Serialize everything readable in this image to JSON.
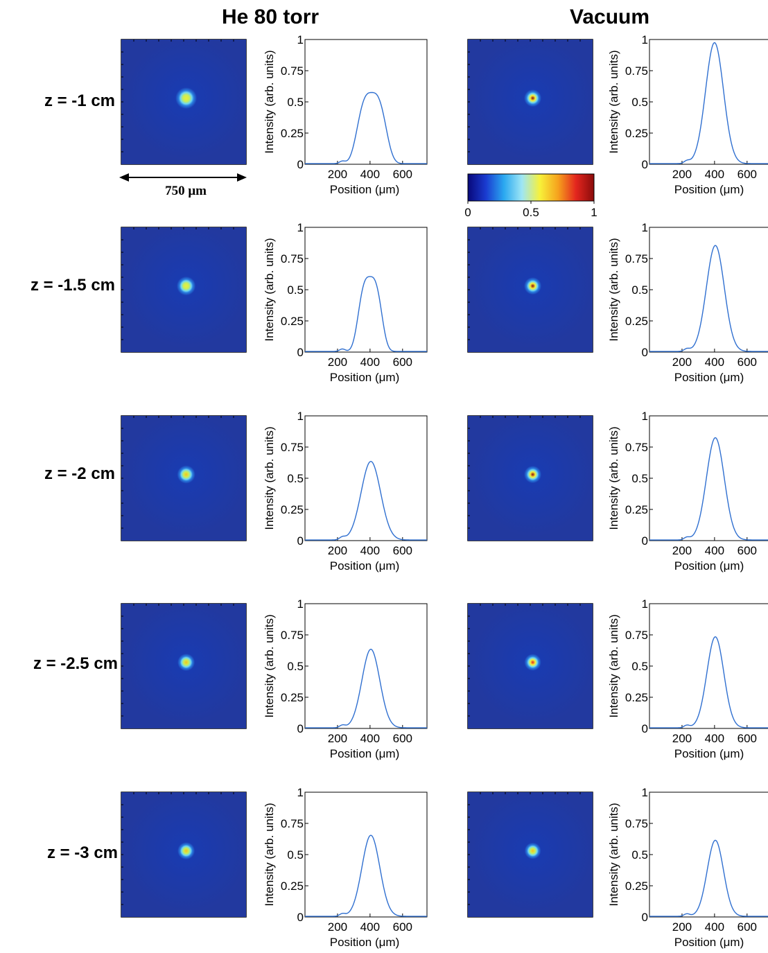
{
  "columns": [
    "He 80 torr",
    "Vacuum"
  ],
  "rows": [
    {
      "label": "z = -1 cm"
    },
    {
      "label": "z = -1.5 cm"
    },
    {
      "label": "z = -2 cm"
    },
    {
      "label": "z = -2.5 cm"
    },
    {
      "label": "z = -3 cm"
    }
  ],
  "scale_bar": {
    "label": "750  μm"
  },
  "colorbar": {
    "ticks": [
      "0",
      "0.5",
      "1"
    ],
    "colors": [
      "#08087a",
      "#1a3bd0",
      "#2aa8f0",
      "#9ee6f5",
      "#f7f13a",
      "#f6a21d",
      "#e3261e",
      "#8a0b0b"
    ]
  },
  "chart_data": [
    {
      "type": "line",
      "title": "He 80 torr",
      "row": "z = -1 cm",
      "xlabel": "Position (μm)",
      "ylabel": "Intensity (arb. units)",
      "xlim": [
        0,
        750
      ],
      "ylim": [
        0,
        1
      ],
      "xticks": [
        "200",
        "400",
        "600"
      ],
      "yticks": [
        "0",
        "0.25",
        "0.5",
        "0.75",
        "1"
      ],
      "peak": 0.57,
      "center": 410,
      "width": 80,
      "flat": true
    },
    {
      "type": "line",
      "title": "Vacuum",
      "row": "z = -1 cm",
      "xlabel": "Position (μm)",
      "ylabel": "Intensity (arb. units)",
      "xlim": [
        0,
        750
      ],
      "ylim": [
        0,
        1
      ],
      "xticks": [
        "200",
        "400",
        "600"
      ],
      "yticks": [
        "0",
        "0.25",
        "0.5",
        "0.75",
        "1"
      ],
      "peak": 0.97,
      "center": 400,
      "width": 55,
      "flat": false
    },
    {
      "type": "line",
      "title": "He 80 torr",
      "row": "z = -1.5 cm",
      "xlabel": "Position (μm)",
      "ylabel": "Intensity (arb. units)",
      "xlim": [
        0,
        750
      ],
      "ylim": [
        0,
        1
      ],
      "xticks": [
        "200",
        "400",
        "600"
      ],
      "yticks": [
        "0",
        "0.25",
        "0.5",
        "0.75",
        "1"
      ],
      "peak": 0.6,
      "center": 400,
      "width": 65,
      "flat": true
    },
    {
      "type": "line",
      "title": "Vacuum",
      "row": "z = -1.5 cm",
      "xlabel": "Position (μm)",
      "ylabel": "Intensity (arb. units)",
      "xlim": [
        0,
        750
      ],
      "ylim": [
        0,
        1
      ],
      "xticks": [
        "200",
        "400",
        "600"
      ],
      "yticks": [
        "0",
        "0.25",
        "0.5",
        "0.75",
        "1"
      ],
      "peak": 0.85,
      "center": 405,
      "width": 55,
      "flat": false
    },
    {
      "type": "line",
      "title": "He 80 torr",
      "row": "z = -2 cm",
      "xlabel": "Position (μm)",
      "ylabel": "Intensity (arb. units)",
      "xlim": [
        0,
        750
      ],
      "ylim": [
        0,
        1
      ],
      "xticks": [
        "200",
        "400",
        "600"
      ],
      "yticks": [
        "0",
        "0.25",
        "0.5",
        "0.75",
        "1"
      ],
      "peak": 0.63,
      "center": 405,
      "width": 60,
      "flat": false
    },
    {
      "type": "line",
      "title": "Vacuum",
      "row": "z = -2 cm",
      "xlabel": "Position (μm)",
      "ylabel": "Intensity (arb. units)",
      "xlim": [
        0,
        750
      ],
      "ylim": [
        0,
        1
      ],
      "xticks": [
        "200",
        "400",
        "600"
      ],
      "yticks": [
        "0",
        "0.25",
        "0.5",
        "0.75",
        "1"
      ],
      "peak": 0.82,
      "center": 405,
      "width": 55,
      "flat": false
    },
    {
      "type": "line",
      "title": "He 80 torr",
      "row": "z = -2.5 cm",
      "xlabel": "Position (μm)",
      "ylabel": "Intensity (arb. units)",
      "xlim": [
        0,
        750
      ],
      "ylim": [
        0,
        1
      ],
      "xticks": [
        "200",
        "400",
        "600"
      ],
      "yticks": [
        "0",
        "0.25",
        "0.5",
        "0.75",
        "1"
      ],
      "peak": 0.63,
      "center": 405,
      "width": 55,
      "flat": false
    },
    {
      "type": "line",
      "title": "Vacuum",
      "row": "z = -2.5 cm",
      "xlabel": "Position (μm)",
      "ylabel": "Intensity (arb. units)",
      "xlim": [
        0,
        750
      ],
      "ylim": [
        0,
        1
      ],
      "xticks": [
        "200",
        "400",
        "600"
      ],
      "yticks": [
        "0",
        "0.25",
        "0.5",
        "0.75",
        "1"
      ],
      "peak": 0.73,
      "center": 405,
      "width": 52,
      "flat": false
    },
    {
      "type": "line",
      "title": "He 80 torr",
      "row": "z = -3 cm",
      "xlabel": "Position (μm)",
      "ylabel": "Intensity (arb. units)",
      "xlim": [
        0,
        750
      ],
      "ylim": [
        0,
        1
      ],
      "xticks": [
        "200",
        "400",
        "600"
      ],
      "yticks": [
        "0",
        "0.25",
        "0.5",
        "0.75",
        "1"
      ],
      "peak": 0.65,
      "center": 405,
      "width": 55,
      "flat": false
    },
    {
      "type": "line",
      "title": "Vacuum",
      "row": "z = -3 cm",
      "xlabel": "Position (μm)",
      "ylabel": "Intensity (arb. units)",
      "xlim": [
        0,
        750
      ],
      "ylim": [
        0,
        1
      ],
      "xticks": [
        "200",
        "400",
        "600"
      ],
      "yticks": [
        "0",
        "0.25",
        "0.5",
        "0.75",
        "1"
      ],
      "peak": 0.61,
      "center": 405,
      "width": 50,
      "flat": false
    }
  ]
}
